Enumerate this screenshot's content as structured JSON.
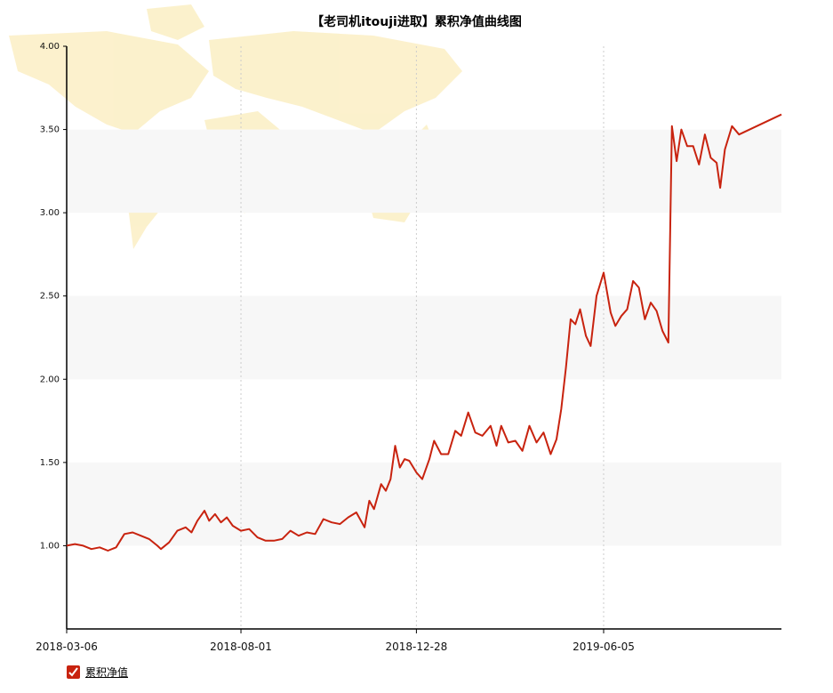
{
  "chart_data": {
    "type": "line",
    "title": "【老司机itouji进取】累积净值曲线图",
    "xlabel": "",
    "ylabel": "",
    "ylim": [
      0.5,
      4.0
    ],
    "yticks": [
      "1.00",
      "1.50",
      "2.00",
      "2.50",
      "3.00",
      "3.50",
      "4.00"
    ],
    "xticks": [
      "2018-03-06",
      "2018-08-01",
      "2018-12-28",
      "2019-06-05"
    ],
    "x_range": [
      "2018-03-06",
      "2019-11-03"
    ],
    "grid": true,
    "legend_position": "bottom-left",
    "series": [
      {
        "name": "累积净值",
        "color": "#c8230f",
        "points": [
          [
            "2018-03-06",
            1.0
          ],
          [
            "2018-03-13",
            1.01
          ],
          [
            "2018-03-20",
            1.0
          ],
          [
            "2018-03-27",
            0.98
          ],
          [
            "2018-04-03",
            0.99
          ],
          [
            "2018-04-10",
            0.97
          ],
          [
            "2018-04-17",
            0.99
          ],
          [
            "2018-04-24",
            1.07
          ],
          [
            "2018-05-01",
            1.08
          ],
          [
            "2018-05-08",
            1.06
          ],
          [
            "2018-05-15",
            1.04
          ],
          [
            "2018-05-22",
            1.0
          ],
          [
            "2018-05-25",
            0.98
          ],
          [
            "2018-06-01",
            1.02
          ],
          [
            "2018-06-08",
            1.09
          ],
          [
            "2018-06-15",
            1.11
          ],
          [
            "2018-06-20",
            1.08
          ],
          [
            "2018-06-25",
            1.15
          ],
          [
            "2018-07-01",
            1.21
          ],
          [
            "2018-07-05",
            1.15
          ],
          [
            "2018-07-10",
            1.19
          ],
          [
            "2018-07-15",
            1.14
          ],
          [
            "2018-07-20",
            1.17
          ],
          [
            "2018-07-25",
            1.12
          ],
          [
            "2018-08-01",
            1.09
          ],
          [
            "2018-08-08",
            1.1
          ],
          [
            "2018-08-15",
            1.05
          ],
          [
            "2018-08-22",
            1.03
          ],
          [
            "2018-08-29",
            1.03
          ],
          [
            "2018-09-05",
            1.04
          ],
          [
            "2018-09-12",
            1.09
          ],
          [
            "2018-09-19",
            1.06
          ],
          [
            "2018-09-26",
            1.08
          ],
          [
            "2018-10-03",
            1.07
          ],
          [
            "2018-10-10",
            1.16
          ],
          [
            "2018-10-17",
            1.14
          ],
          [
            "2018-10-24",
            1.13
          ],
          [
            "2018-10-31",
            1.17
          ],
          [
            "2018-11-07",
            1.2
          ],
          [
            "2018-11-14",
            1.11
          ],
          [
            "2018-11-18",
            1.27
          ],
          [
            "2018-11-22",
            1.22
          ],
          [
            "2018-11-28",
            1.37
          ],
          [
            "2018-12-02",
            1.33
          ],
          [
            "2018-12-06",
            1.4
          ],
          [
            "2018-12-10",
            1.6
          ],
          [
            "2018-12-14",
            1.47
          ],
          [
            "2018-12-18",
            1.52
          ],
          [
            "2018-12-22",
            1.51
          ],
          [
            "2018-12-28",
            1.44
          ],
          [
            "2019-01-02",
            1.4
          ],
          [
            "2019-01-08",
            1.52
          ],
          [
            "2019-01-12",
            1.63
          ],
          [
            "2019-01-18",
            1.55
          ],
          [
            "2019-01-24",
            1.55
          ],
          [
            "2019-01-30",
            1.69
          ],
          [
            "2019-02-04",
            1.66
          ],
          [
            "2019-02-10",
            1.8
          ],
          [
            "2019-02-16",
            1.68
          ],
          [
            "2019-02-22",
            1.66
          ],
          [
            "2019-03-01",
            1.72
          ],
          [
            "2019-03-06",
            1.6
          ],
          [
            "2019-03-10",
            1.72
          ],
          [
            "2019-03-16",
            1.62
          ],
          [
            "2019-03-22",
            1.63
          ],
          [
            "2019-03-28",
            1.57
          ],
          [
            "2019-04-03",
            1.72
          ],
          [
            "2019-04-09",
            1.62
          ],
          [
            "2019-04-15",
            1.68
          ],
          [
            "2019-04-21",
            1.55
          ],
          [
            "2019-04-26",
            1.64
          ],
          [
            "2019-04-30",
            1.82
          ],
          [
            "2019-05-04",
            2.07
          ],
          [
            "2019-05-08",
            2.36
          ],
          [
            "2019-05-12",
            2.33
          ],
          [
            "2019-05-16",
            2.42
          ],
          [
            "2019-05-21",
            2.26
          ],
          [
            "2019-05-25",
            2.2
          ],
          [
            "2019-05-30",
            2.5
          ],
          [
            "2019-06-05",
            2.64
          ],
          [
            "2019-06-11",
            2.4
          ],
          [
            "2019-06-15",
            2.32
          ],
          [
            "2019-06-20",
            2.38
          ],
          [
            "2019-06-25",
            2.42
          ],
          [
            "2019-06-30",
            2.59
          ],
          [
            "2019-07-05",
            2.55
          ],
          [
            "2019-07-10",
            2.36
          ],
          [
            "2019-07-15",
            2.46
          ],
          [
            "2019-07-20",
            2.41
          ],
          [
            "2019-07-25",
            2.29
          ],
          [
            "2019-07-30",
            2.22
          ],
          [
            "2019-08-02",
            3.52
          ],
          [
            "2019-08-06",
            3.31
          ],
          [
            "2019-08-10",
            3.5
          ],
          [
            "2019-08-15",
            3.4
          ],
          [
            "2019-08-20",
            3.4
          ],
          [
            "2019-08-25",
            3.29
          ],
          [
            "2019-08-30",
            3.47
          ],
          [
            "2019-09-04",
            3.33
          ],
          [
            "2019-09-09",
            3.3
          ],
          [
            "2019-09-12",
            3.15
          ],
          [
            "2019-09-16",
            3.38
          ],
          [
            "2019-09-22",
            3.52
          ],
          [
            "2019-09-28",
            3.47
          ],
          [
            "2019-11-03",
            3.59
          ]
        ]
      }
    ]
  },
  "legend": {
    "label": "累积净值",
    "checked": true
  }
}
